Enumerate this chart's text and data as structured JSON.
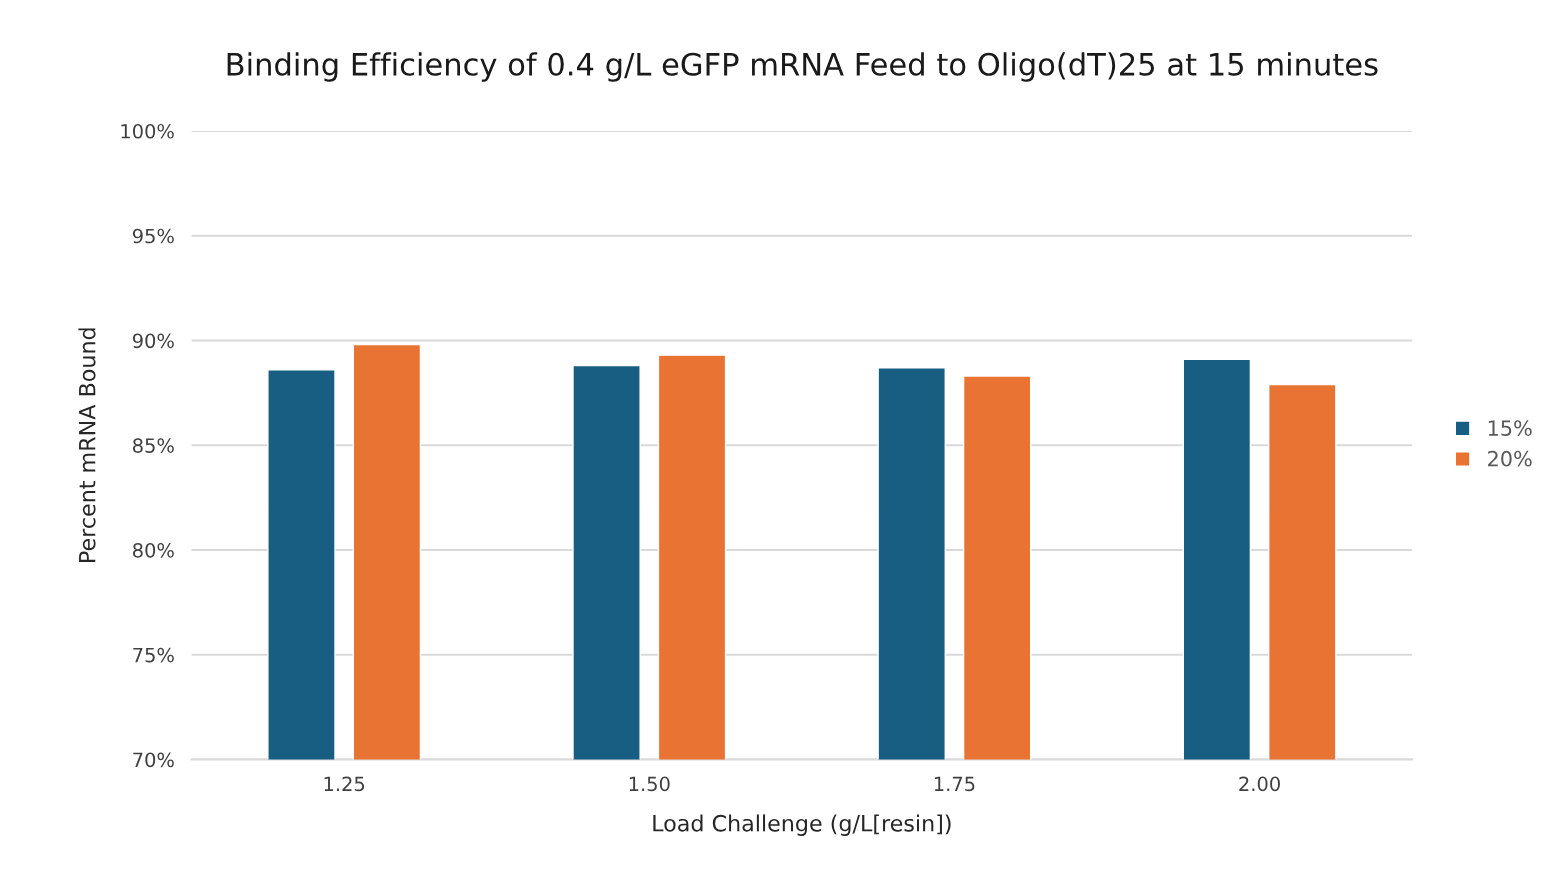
{
  "chart_data": {
    "type": "bar",
    "title": "Binding Efficiency of 0.4 g/L eGFP mRNA Feed to Oligo(dT)25 at 15 minutes",
    "xlabel": "Load Challenge (g/L[resin])",
    "ylabel": "Percent mRNA Bound",
    "categories": [
      "1.25",
      "1.50",
      "1.75",
      "2.00"
    ],
    "series": [
      {
        "name": "15%",
        "color": "#175e82",
        "values": [
          88.6,
          88.8,
          88.7,
          89.1
        ]
      },
      {
        "name": "20%",
        "color": "#e97333",
        "values": [
          89.8,
          89.3,
          88.3,
          87.9
        ]
      }
    ],
    "ylim": [
      70,
      100
    ],
    "yticks": [
      {
        "value": 70,
        "label": "70%"
      },
      {
        "value": 75,
        "label": "75%"
      },
      {
        "value": 80,
        "label": "80%"
      },
      {
        "value": 85,
        "label": "85%"
      },
      {
        "value": 90,
        "label": "90%"
      },
      {
        "value": 95,
        "label": "95%"
      },
      {
        "value": 100,
        "label": "100%"
      }
    ],
    "grid": "y",
    "legend": "right"
  }
}
